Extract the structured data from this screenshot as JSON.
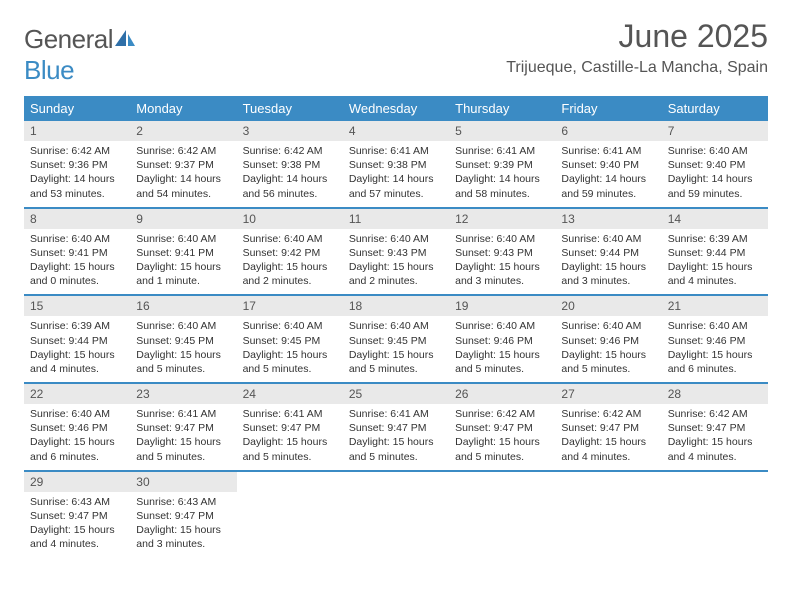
{
  "brand": {
    "word1": "General",
    "word2": "Blue"
  },
  "title": "June 2025",
  "location": "Trijueque, Castille-La Mancha, Spain",
  "colors": {
    "header_bg": "#3b8bc4",
    "header_fg": "#ffffff",
    "daynum_bg": "#e9e9e9",
    "text": "#333333",
    "title_color": "#555555",
    "border": "#3b8bc4",
    "background": "#ffffff"
  },
  "fonts": {
    "title_size": 32,
    "location_size": 16,
    "dayhdr_size": 13,
    "cell_size": 10.5
  },
  "day_headers": [
    "Sunday",
    "Monday",
    "Tuesday",
    "Wednesday",
    "Thursday",
    "Friday",
    "Saturday"
  ],
  "weeks": [
    [
      {
        "n": "1",
        "sr": "Sunrise: 6:42 AM",
        "ss": "Sunset: 9:36 PM",
        "d1": "Daylight: 14 hours",
        "d2": "and 53 minutes."
      },
      {
        "n": "2",
        "sr": "Sunrise: 6:42 AM",
        "ss": "Sunset: 9:37 PM",
        "d1": "Daylight: 14 hours",
        "d2": "and 54 minutes."
      },
      {
        "n": "3",
        "sr": "Sunrise: 6:42 AM",
        "ss": "Sunset: 9:38 PM",
        "d1": "Daylight: 14 hours",
        "d2": "and 56 minutes."
      },
      {
        "n": "4",
        "sr": "Sunrise: 6:41 AM",
        "ss": "Sunset: 9:38 PM",
        "d1": "Daylight: 14 hours",
        "d2": "and 57 minutes."
      },
      {
        "n": "5",
        "sr": "Sunrise: 6:41 AM",
        "ss": "Sunset: 9:39 PM",
        "d1": "Daylight: 14 hours",
        "d2": "and 58 minutes."
      },
      {
        "n": "6",
        "sr": "Sunrise: 6:41 AM",
        "ss": "Sunset: 9:40 PM",
        "d1": "Daylight: 14 hours",
        "d2": "and 59 minutes."
      },
      {
        "n": "7",
        "sr": "Sunrise: 6:40 AM",
        "ss": "Sunset: 9:40 PM",
        "d1": "Daylight: 14 hours",
        "d2": "and 59 minutes."
      }
    ],
    [
      {
        "n": "8",
        "sr": "Sunrise: 6:40 AM",
        "ss": "Sunset: 9:41 PM",
        "d1": "Daylight: 15 hours",
        "d2": "and 0 minutes."
      },
      {
        "n": "9",
        "sr": "Sunrise: 6:40 AM",
        "ss": "Sunset: 9:41 PM",
        "d1": "Daylight: 15 hours",
        "d2": "and 1 minute."
      },
      {
        "n": "10",
        "sr": "Sunrise: 6:40 AM",
        "ss": "Sunset: 9:42 PM",
        "d1": "Daylight: 15 hours",
        "d2": "and 2 minutes."
      },
      {
        "n": "11",
        "sr": "Sunrise: 6:40 AM",
        "ss": "Sunset: 9:43 PM",
        "d1": "Daylight: 15 hours",
        "d2": "and 2 minutes."
      },
      {
        "n": "12",
        "sr": "Sunrise: 6:40 AM",
        "ss": "Sunset: 9:43 PM",
        "d1": "Daylight: 15 hours",
        "d2": "and 3 minutes."
      },
      {
        "n": "13",
        "sr": "Sunrise: 6:40 AM",
        "ss": "Sunset: 9:44 PM",
        "d1": "Daylight: 15 hours",
        "d2": "and 3 minutes."
      },
      {
        "n": "14",
        "sr": "Sunrise: 6:39 AM",
        "ss": "Sunset: 9:44 PM",
        "d1": "Daylight: 15 hours",
        "d2": "and 4 minutes."
      }
    ],
    [
      {
        "n": "15",
        "sr": "Sunrise: 6:39 AM",
        "ss": "Sunset: 9:44 PM",
        "d1": "Daylight: 15 hours",
        "d2": "and 4 minutes."
      },
      {
        "n": "16",
        "sr": "Sunrise: 6:40 AM",
        "ss": "Sunset: 9:45 PM",
        "d1": "Daylight: 15 hours",
        "d2": "and 5 minutes."
      },
      {
        "n": "17",
        "sr": "Sunrise: 6:40 AM",
        "ss": "Sunset: 9:45 PM",
        "d1": "Daylight: 15 hours",
        "d2": "and 5 minutes."
      },
      {
        "n": "18",
        "sr": "Sunrise: 6:40 AM",
        "ss": "Sunset: 9:45 PM",
        "d1": "Daylight: 15 hours",
        "d2": "and 5 minutes."
      },
      {
        "n": "19",
        "sr": "Sunrise: 6:40 AM",
        "ss": "Sunset: 9:46 PM",
        "d1": "Daylight: 15 hours",
        "d2": "and 5 minutes."
      },
      {
        "n": "20",
        "sr": "Sunrise: 6:40 AM",
        "ss": "Sunset: 9:46 PM",
        "d1": "Daylight: 15 hours",
        "d2": "and 5 minutes."
      },
      {
        "n": "21",
        "sr": "Sunrise: 6:40 AM",
        "ss": "Sunset: 9:46 PM",
        "d1": "Daylight: 15 hours",
        "d2": "and 6 minutes."
      }
    ],
    [
      {
        "n": "22",
        "sr": "Sunrise: 6:40 AM",
        "ss": "Sunset: 9:46 PM",
        "d1": "Daylight: 15 hours",
        "d2": "and 6 minutes."
      },
      {
        "n": "23",
        "sr": "Sunrise: 6:41 AM",
        "ss": "Sunset: 9:47 PM",
        "d1": "Daylight: 15 hours",
        "d2": "and 5 minutes."
      },
      {
        "n": "24",
        "sr": "Sunrise: 6:41 AM",
        "ss": "Sunset: 9:47 PM",
        "d1": "Daylight: 15 hours",
        "d2": "and 5 minutes."
      },
      {
        "n": "25",
        "sr": "Sunrise: 6:41 AM",
        "ss": "Sunset: 9:47 PM",
        "d1": "Daylight: 15 hours",
        "d2": "and 5 minutes."
      },
      {
        "n": "26",
        "sr": "Sunrise: 6:42 AM",
        "ss": "Sunset: 9:47 PM",
        "d1": "Daylight: 15 hours",
        "d2": "and 5 minutes."
      },
      {
        "n": "27",
        "sr": "Sunrise: 6:42 AM",
        "ss": "Sunset: 9:47 PM",
        "d1": "Daylight: 15 hours",
        "d2": "and 4 minutes."
      },
      {
        "n": "28",
        "sr": "Sunrise: 6:42 AM",
        "ss": "Sunset: 9:47 PM",
        "d1": "Daylight: 15 hours",
        "d2": "and 4 minutes."
      }
    ],
    [
      {
        "n": "29",
        "sr": "Sunrise: 6:43 AM",
        "ss": "Sunset: 9:47 PM",
        "d1": "Daylight: 15 hours",
        "d2": "and 4 minutes."
      },
      {
        "n": "30",
        "sr": "Sunrise: 6:43 AM",
        "ss": "Sunset: 9:47 PM",
        "d1": "Daylight: 15 hours",
        "d2": "and 3 minutes."
      },
      {
        "empty": true
      },
      {
        "empty": true
      },
      {
        "empty": true
      },
      {
        "empty": true
      },
      {
        "empty": true
      }
    ]
  ]
}
